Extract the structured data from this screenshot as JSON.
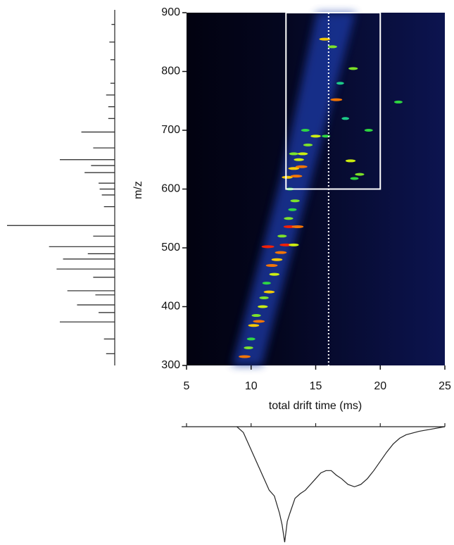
{
  "chart_data": [
    {
      "type": "heatmap",
      "xlabel": "total drift time (ms)",
      "ylabel": "m/z",
      "xlim": [
        5,
        25
      ],
      "ylim": [
        300,
        900
      ],
      "xticks": [
        5,
        10,
        15,
        20,
        25
      ],
      "yticks": [
        300,
        400,
        500,
        600,
        700,
        800,
        900
      ],
      "colormap": [
        "#1a2a9c",
        "#00c8ff",
        "#30e040",
        "#ffff00",
        "#ff2000"
      ],
      "x": [
        9.5,
        9.8,
        10.0,
        10.2,
        10.6,
        10.4,
        10.9,
        11.0,
        11.4,
        11.2,
        11.8,
        11.6,
        12.0,
        12.3,
        11.3,
        12.7,
        13.3,
        12.4,
        13.0,
        13.6,
        12.9,
        13.2,
        13.4,
        13.0,
        12.8,
        13.5,
        13.3,
        13.9,
        13.7,
        13.3,
        14.0,
        14.4,
        15.0,
        14.2,
        15.8,
        16.6,
        17.9,
        16.3,
        15.7,
        17.7,
        18.4,
        18.0,
        19.1,
        21.4,
        17.3,
        16.9
      ],
      "values": [
        315,
        330,
        345,
        368,
        375,
        385,
        400,
        415,
        425,
        440,
        455,
        470,
        480,
        492,
        502,
        505,
        505,
        520,
        536,
        536,
        550,
        565,
        580,
        600,
        620,
        622,
        635,
        638,
        650,
        660,
        660,
        675,
        690,
        700,
        690,
        752,
        805,
        842,
        855,
        648,
        625,
        618,
        700,
        748,
        720,
        780
      ],
      "intensity": [
        0.9,
        0.6,
        0.5,
        0.8,
        0.9,
        0.6,
        0.7,
        0.6,
        0.8,
        0.5,
        0.7,
        0.9,
        0.8,
        0.9,
        1.0,
        1.0,
        0.7,
        0.6,
        1.0,
        0.9,
        0.6,
        0.5,
        0.6,
        0.5,
        0.8,
        0.9,
        0.8,
        0.9,
        0.7,
        0.6,
        0.7,
        0.6,
        0.7,
        0.5,
        0.5,
        0.9,
        0.6,
        0.6,
        0.8,
        0.7,
        0.6,
        0.5,
        0.5,
        0.5,
        0.4,
        0.4
      ],
      "box": {
        "x": [
          12.7,
          20
        ],
        "y": [
          600,
          900
        ],
        "color": "#ffffff"
      },
      "marker_x": 16
    },
    {
      "type": "stem",
      "color": "#222222",
      "xlim": [
        300,
        900
      ],
      "ylim": [
        0,
        100
      ],
      "x": [
        320,
        345,
        374,
        390,
        403,
        420,
        427,
        450,
        464,
        481,
        490,
        502,
        520,
        538,
        570,
        590,
        600,
        610,
        628,
        640,
        650,
        670,
        697,
        720,
        740,
        760,
        780,
        820,
        850,
        880
      ],
      "values": [
        8,
        10,
        51,
        15,
        35,
        18,
        44,
        20,
        54,
        48,
        25,
        61,
        20,
        100,
        10,
        12,
        14,
        15,
        28,
        22,
        51,
        20,
        31,
        6,
        6,
        8,
        4,
        4,
        5,
        3
      ]
    },
    {
      "type": "line",
      "color": "#222222",
      "xlim": [
        5,
        25
      ],
      "ylim": [
        0,
        100
      ],
      "xticks": [
        5,
        10,
        15,
        20,
        25
      ],
      "x": [
        8.9,
        9.4,
        9.8,
        10.2,
        10.6,
        11.0,
        11.4,
        11.8,
        12.2,
        12.4,
        12.6,
        12.8,
        13.0,
        13.4,
        13.8,
        14.2,
        14.6,
        15.0,
        15.4,
        15.8,
        16.2,
        16.6,
        17.0,
        17.5,
        18.0,
        18.5,
        19.0,
        19.5,
        20.0,
        20.5,
        21.0,
        21.5,
        22.0,
        23.0,
        24.0,
        25.0
      ],
      "values": [
        0,
        5,
        15,
        25,
        35,
        45,
        55,
        60,
        75,
        85,
        100,
        82,
        75,
        62,
        58,
        55,
        50,
        45,
        40,
        38,
        38,
        42,
        45,
        50,
        52,
        50,
        45,
        38,
        30,
        22,
        15,
        10,
        7,
        4,
        2,
        0
      ]
    }
  ]
}
